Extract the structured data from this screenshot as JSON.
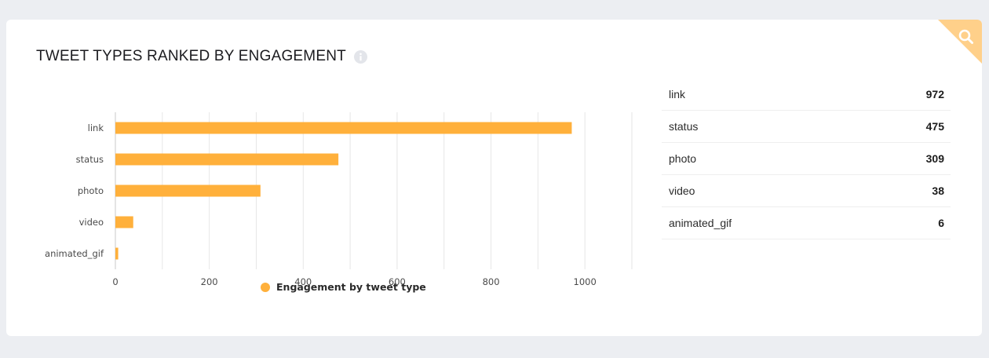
{
  "title": "TWEET TYPES RANKED BY ENGAGEMENT",
  "icons": {
    "info": "info-icon",
    "corner_action": "search-icon"
  },
  "colors": {
    "bar": "#ffb03b",
    "corner": "#ffd08a",
    "grid": "#e6e6e6",
    "axis": "#c9c9c9"
  },
  "legend": {
    "label": "Engagement by tweet type"
  },
  "table": {
    "rows": [
      {
        "label": "link",
        "value": "972"
      },
      {
        "label": "status",
        "value": "475"
      },
      {
        "label": "photo",
        "value": "309"
      },
      {
        "label": "video",
        "value": "38"
      },
      {
        "label": "animated_gif",
        "value": "6"
      }
    ]
  },
  "chart_data": {
    "type": "bar",
    "orientation": "horizontal",
    "categories": [
      "link",
      "status",
      "photo",
      "video",
      "animated_gif"
    ],
    "series": [
      {
        "name": "Engagement by tweet type",
        "values": [
          972,
          475,
          309,
          38,
          6
        ]
      }
    ],
    "xlim": [
      0,
      1100
    ],
    "x_ticks": [
      0,
      200,
      400,
      600,
      800,
      1000
    ],
    "grid": true,
    "legend_position": "bottom"
  }
}
